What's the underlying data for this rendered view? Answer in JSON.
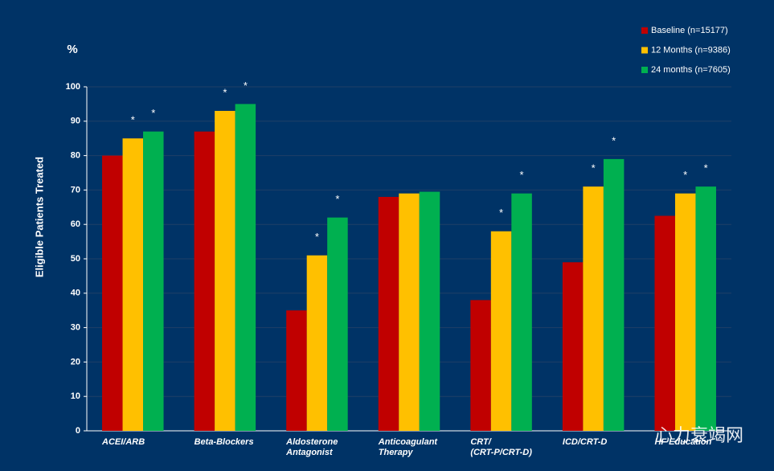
{
  "chart_data": {
    "type": "bar",
    "y_unit": "%",
    "y_label": "Eligible Patients Treated",
    "categories": [
      "ACEI/ARB",
      "Beta-Blockers",
      "Aldosterone\nAntagonist",
      "Anticoagulant\nTherapy",
      "CRT/\n(CRT-P/CRT-D)",
      "ICD/CRT-D",
      "HF Education"
    ],
    "series": [
      {
        "name": "Baseline (n=15177)",
        "color": "#c00000",
        "values": [
          80,
          87,
          35,
          68,
          38,
          49,
          62.5
        ],
        "annotations": [
          null,
          null,
          null,
          null,
          null,
          null,
          null
        ]
      },
      {
        "name": "12 Months (n=9386)",
        "color": "#ffc000",
        "values": [
          85,
          93,
          51,
          69,
          58,
          71,
          69
        ],
        "annotations": [
          "*",
          "*",
          "*",
          null,
          "*",
          "*",
          "*"
        ]
      },
      {
        "name": "24 months (n=7605)",
        "color": "#00b050",
        "values": [
          87,
          95,
          62,
          69.5,
          69,
          79,
          71
        ],
        "annotations": [
          "*",
          "*",
          "*",
          null,
          "*",
          "*",
          "*"
        ]
      }
    ],
    "ylim": [
      0,
      100
    ],
    "yticks": [
      0,
      10,
      20,
      30,
      40,
      50,
      60,
      70,
      80,
      90,
      100
    ],
    "grid": true,
    "legend": "top-right",
    "watermark": "心力衰竭网"
  }
}
